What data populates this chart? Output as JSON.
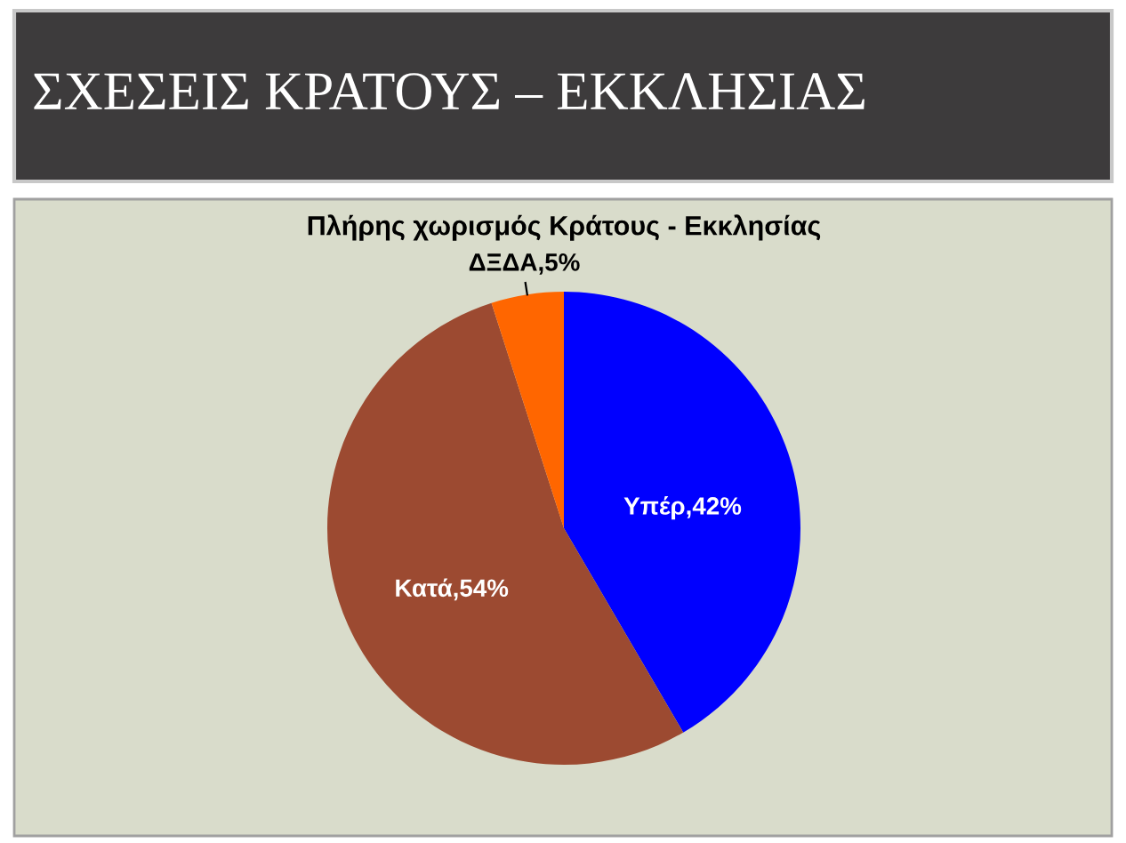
{
  "chart_data": {
    "type": "pie",
    "title": "ΣΧΕΣΕΙΣ ΚΡΑΤΟΥΣ – ΕΚΚΛΗΣΙΑΣ",
    "subtitle": "Πλήρης χωρισμός Κράτους - Εκκλησίας",
    "categories": [
      "Υπέρ",
      "Κατά",
      "ΔΞΔΑ"
    ],
    "values": [
      42,
      54,
      5
    ],
    "colors": [
      "#0000ff",
      "#9c4a31",
      "#ff6600"
    ],
    "value_labels": [
      "42%",
      "54%",
      "5%"
    ],
    "legend": false
  }
}
